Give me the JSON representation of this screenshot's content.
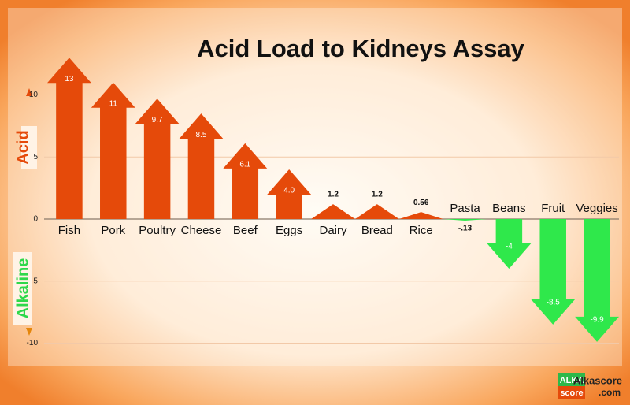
{
  "chart_data": {
    "type": "arrow-bar",
    "title": "Acid Load to Kidneys Assay",
    "acid_label": "Acid",
    "alkaline_label": "Alkaline",
    "categories": [
      "Fish",
      "Pork",
      "Poultry",
      "Cheese",
      "Beef",
      "Eggs",
      "Dairy",
      "Bread",
      "Rice",
      "Pasta",
      "Beans",
      "Fruit",
      "Veggies"
    ],
    "values": [
      13,
      11,
      9.7,
      8.5,
      6.1,
      4.0,
      1.2,
      1.2,
      0.56,
      -0.13,
      -4,
      -8.5,
      -9.9
    ],
    "value_labels": [
      "13",
      "11",
      "9.7",
      "8.5",
      "6.1",
      "4.0",
      "1.2",
      "1.2",
      "0.56",
      "-.13",
      "-4",
      "-8.5",
      "-9.9"
    ],
    "positive_color": "#e54a0a",
    "negative_color": "#2fe84b",
    "ylim": [
      -12,
      14
    ],
    "yticks": [
      10,
      5,
      0,
      -5,
      -10
    ],
    "grid": true,
    "logo_top": "ALKA",
    "logo_bottom": "score",
    "site_name": "Alkascore",
    "site_domain": ".com"
  }
}
